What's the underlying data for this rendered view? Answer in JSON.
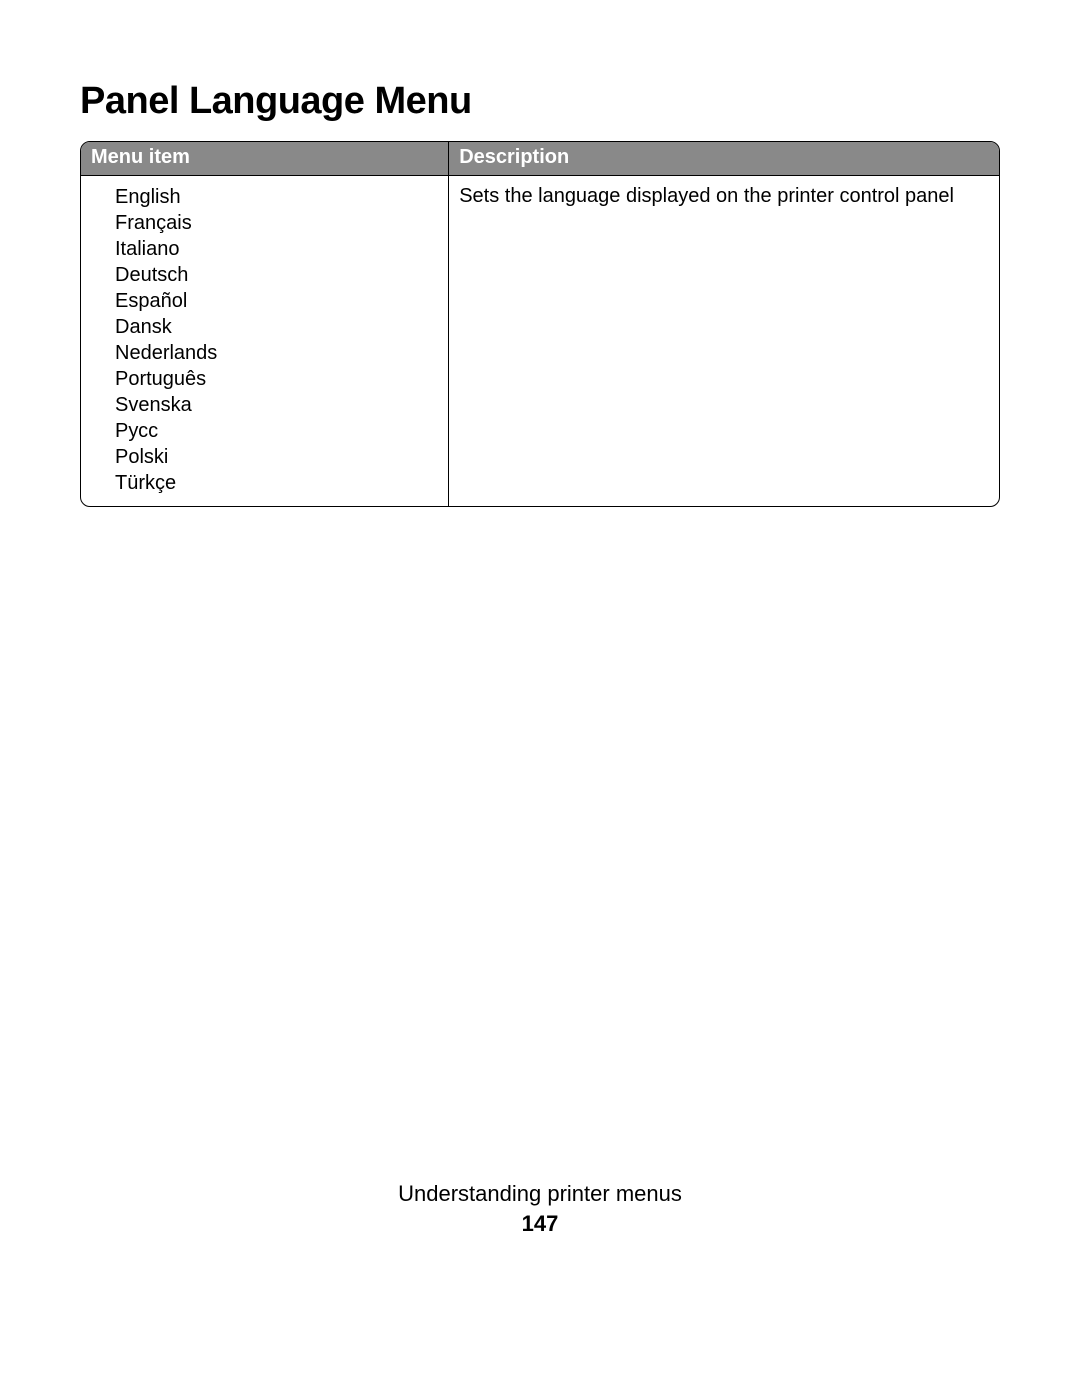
{
  "title": "Panel Language Menu",
  "table": {
    "header_bg": "#898989",
    "header_fg": "#ffffff",
    "border_color": "#000000",
    "columns": [
      "Menu item",
      "Description"
    ],
    "col_widths_pct": [
      40,
      60
    ],
    "items": [
      "English",
      "Français",
      "Italiano",
      "Deutsch",
      "Español",
      "Dansk",
      "Nederlands",
      "Português",
      "Svenska",
      "Русс",
      "Polski",
      "Türkçe"
    ],
    "description": "Sets the language displayed on the printer control panel"
  },
  "footer": {
    "section": "Understanding printer menus",
    "page": "147"
  }
}
